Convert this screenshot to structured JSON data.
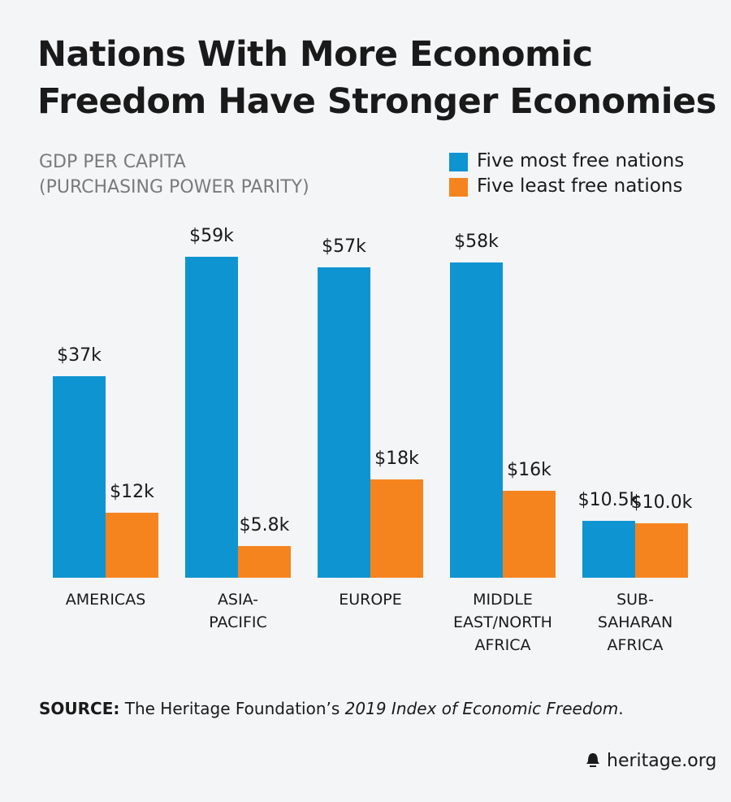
{
  "chart_data": {
    "type": "bar",
    "title": "Nations With More Economic\nFreedom Have Stronger Economies",
    "subtitle": "GDP PER CAPITA\n(PURCHASING POWER PARITY)",
    "categories": [
      "AMERICAS",
      "ASIA-\nPACIFIC",
      "EUROPE",
      "MIDDLE\nEAST/NORTH\nAFRICA",
      "SUB-\nSAHARAN\nAFRICA"
    ],
    "series": [
      {
        "name": "Five most free nations",
        "color": "#0f94d2",
        "values": [
          37,
          59,
          57,
          58,
          10.5
        ],
        "value_labels": [
          "$37k",
          "$59k",
          "$57k",
          "$58k",
          "$10.5k"
        ]
      },
      {
        "name": "Five least free nations",
        "color": "#f5841f",
        "values": [
          12,
          5.8,
          18,
          16,
          10
        ],
        "value_labels": [
          "$12k",
          "$5.8k",
          "$18k",
          "$16k",
          "$10.0k"
        ]
      }
    ],
    "source": {
      "label": "SOURCE:",
      "text": "The Heritage Foundation’s",
      "publication": "2019 Index of Economic Freedom",
      "end": "."
    },
    "footer": "heritage.org"
  }
}
